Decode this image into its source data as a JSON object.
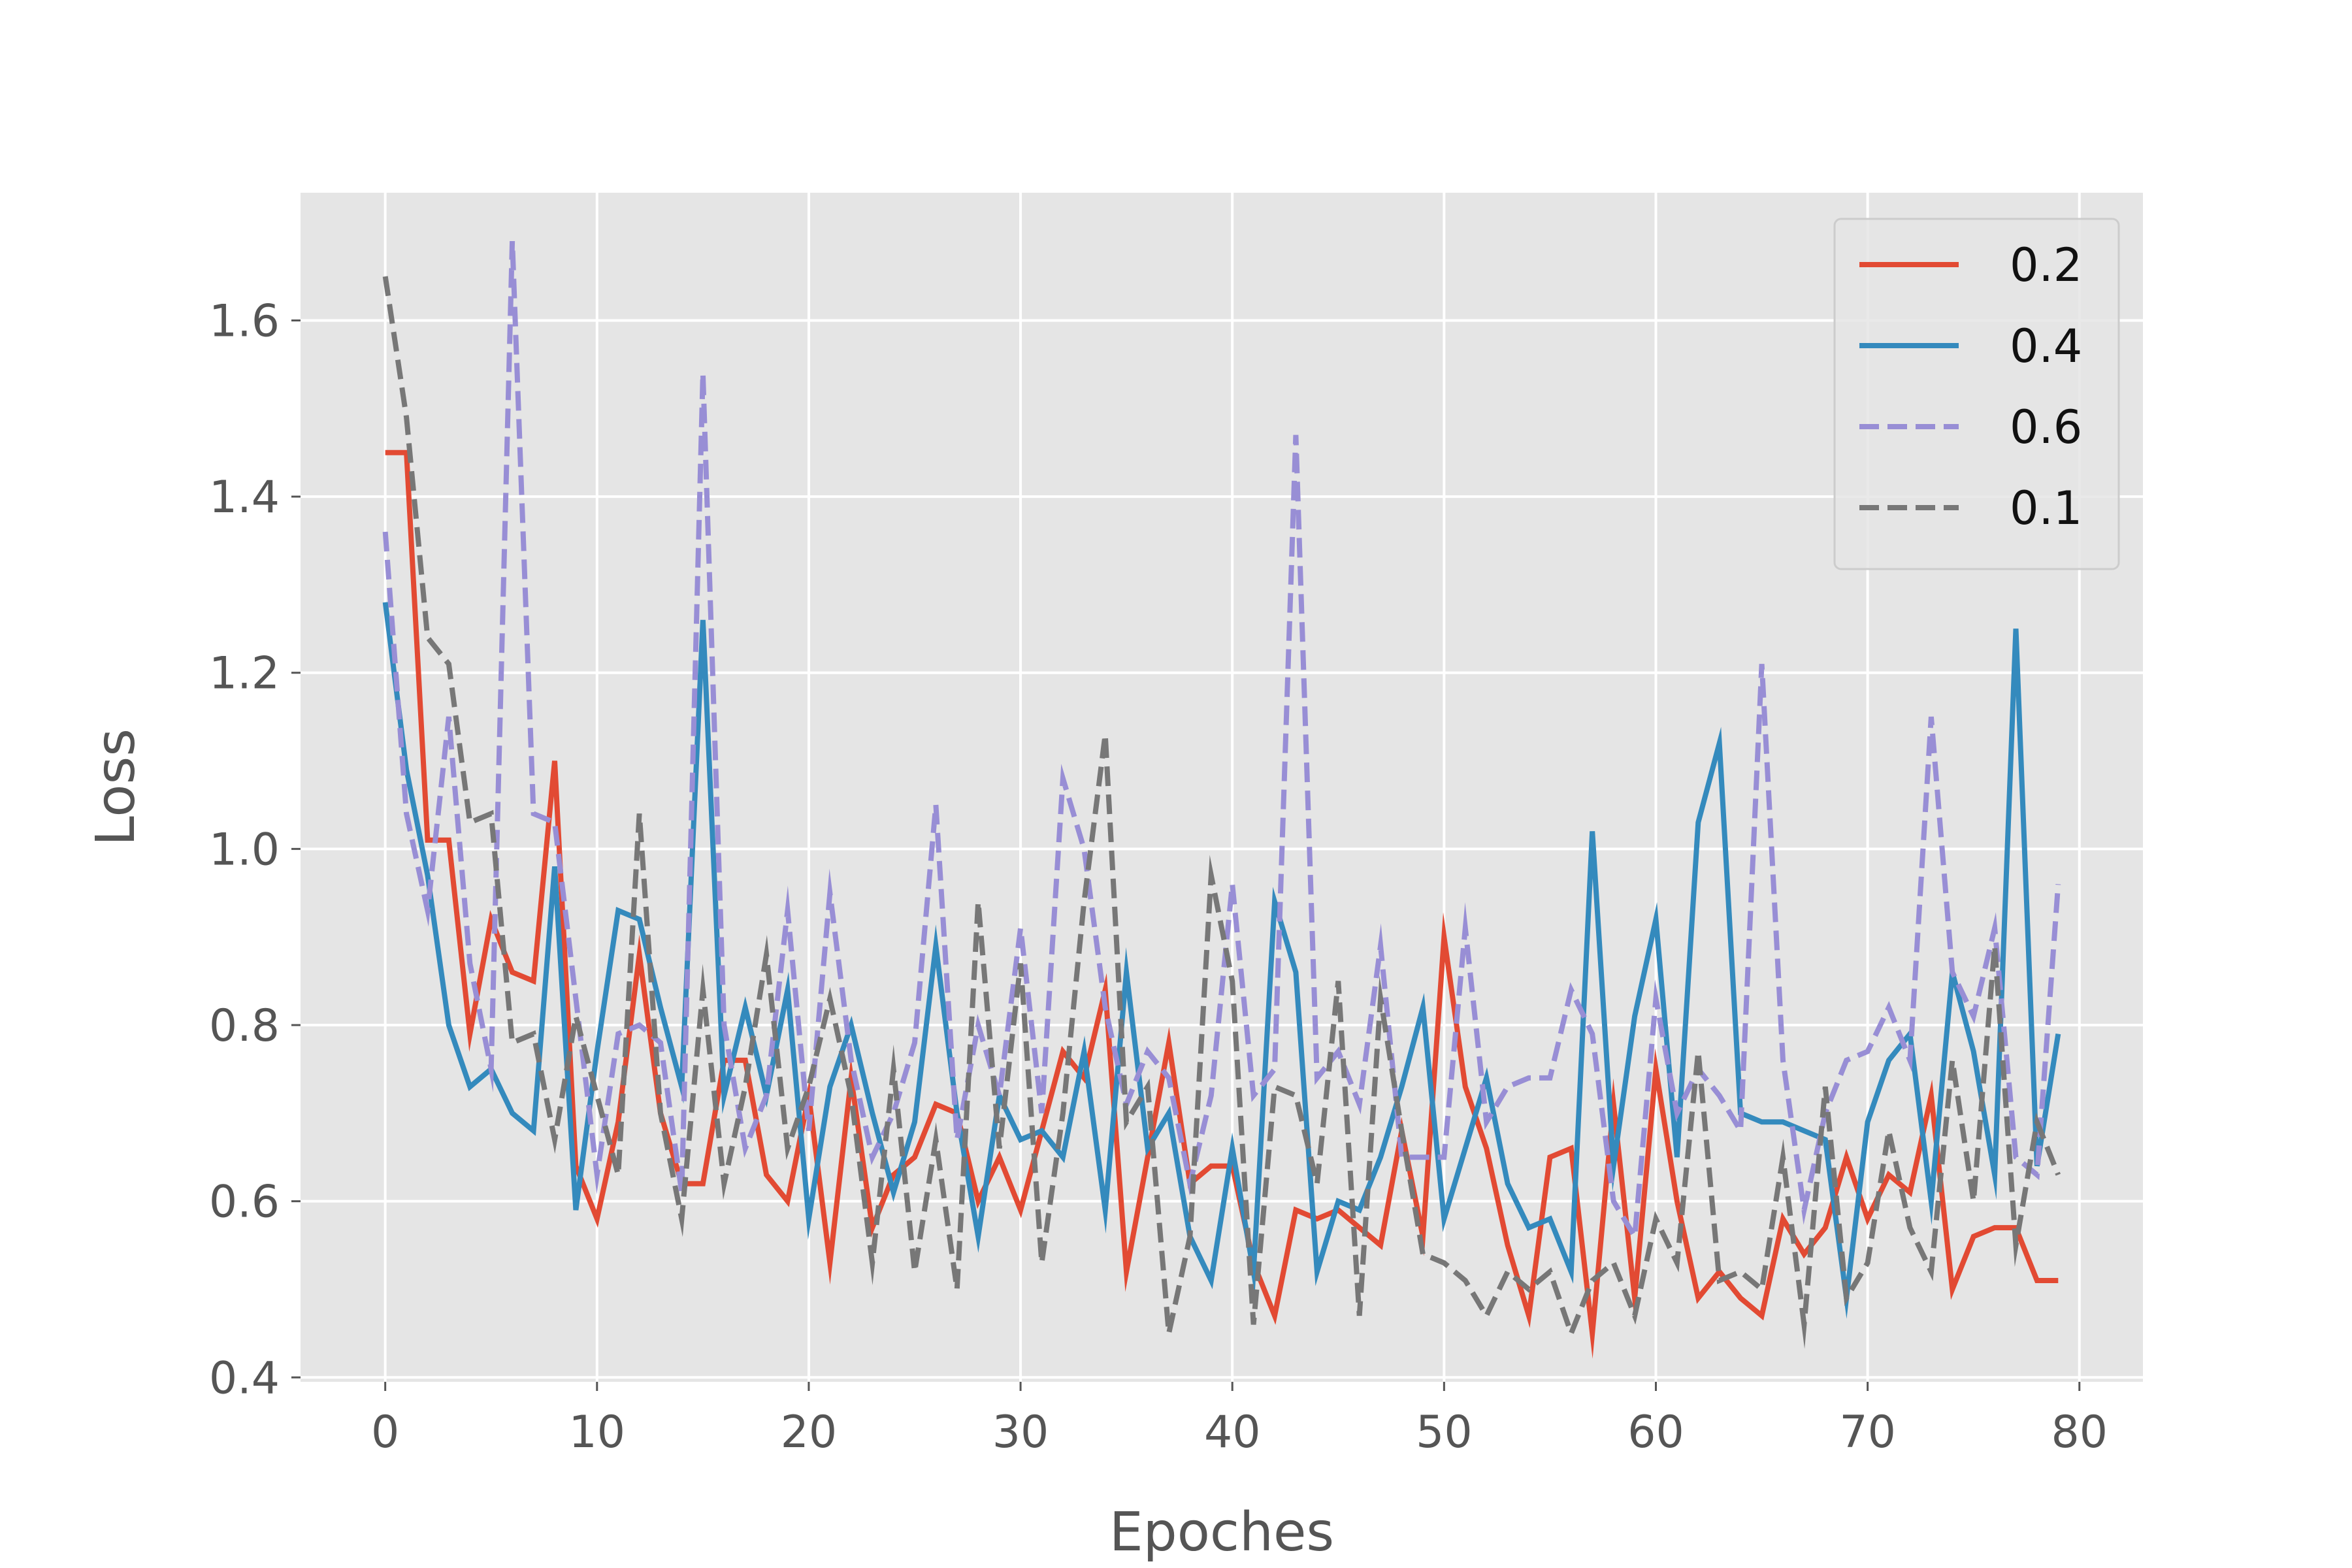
{
  "chart_data": {
    "type": "line",
    "xlabel": "Epoches",
    "ylabel": "Loss",
    "xlim": [
      -4,
      83
    ],
    "ylim": [
      0.395,
      1.745
    ],
    "xticks": [
      0,
      10,
      20,
      30,
      40,
      50,
      60,
      70,
      80
    ],
    "yticks": [
      0.4,
      0.6,
      0.8,
      1.0,
      1.2,
      1.4,
      1.6
    ],
    "grid": true,
    "legend_position": "top-right",
    "series": [
      {
        "name": "0.2",
        "color": "#e24a33",
        "dash": "solid",
        "values": [
          1.45,
          1.45,
          1.01,
          1.01,
          0.79,
          0.92,
          0.86,
          0.85,
          1.1,
          0.64,
          0.58,
          0.69,
          0.88,
          0.7,
          0.62,
          0.62,
          0.76,
          0.76,
          0.63,
          0.6,
          0.72,
          0.53,
          0.74,
          0.57,
          0.63,
          0.65,
          0.71,
          0.7,
          0.6,
          0.65,
          0.59,
          0.68,
          0.77,
          0.74,
          0.84,
          0.52,
          0.65,
          0.78,
          0.62,
          0.64,
          0.64,
          0.53,
          0.47,
          0.59,
          0.58,
          0.59,
          0.57,
          0.55,
          0.68,
          0.56,
          0.9,
          0.73,
          0.66,
          0.55,
          0.47,
          0.65,
          0.66,
          0.45,
          0.71,
          0.49,
          0.75,
          0.6,
          0.49,
          0.52,
          0.49,
          0.47,
          0.58,
          0.54,
          0.57,
          0.65,
          0.58,
          0.63,
          0.61,
          0.72,
          0.5,
          0.56,
          0.57,
          0.57,
          0.51,
          0.51
        ]
      },
      {
        "name": "0.4",
        "color": "#348abd",
        "dash": "solid",
        "values": [
          1.28,
          1.09,
          0.97,
          0.8,
          0.73,
          0.75,
          0.7,
          0.68,
          0.98,
          0.59,
          0.77,
          0.93,
          0.92,
          0.82,
          0.73,
          1.26,
          0.72,
          0.82,
          0.72,
          0.84,
          0.58,
          0.73,
          0.8,
          0.7,
          0.61,
          0.69,
          0.89,
          0.7,
          0.56,
          0.72,
          0.67,
          0.68,
          0.65,
          0.77,
          0.59,
          0.86,
          0.66,
          0.7,
          0.56,
          0.51,
          0.66,
          0.52,
          0.94,
          0.86,
          0.52,
          0.6,
          0.59,
          0.65,
          0.73,
          0.82,
          0.58,
          0.66,
          0.74,
          0.62,
          0.57,
          0.58,
          0.52,
          1.02,
          0.64,
          0.81,
          0.92,
          0.65,
          1.03,
          1.12,
          0.7,
          0.69,
          0.69,
          0.68,
          0.67,
          0.49,
          0.69,
          0.76,
          0.79,
          0.6,
          0.86,
          0.77,
          0.63,
          1.25,
          0.64,
          0.79
        ]
      },
      {
        "name": "0.6",
        "color": "#988ed5",
        "dash": "dashed",
        "values": [
          1.36,
          1.04,
          0.93,
          1.15,
          0.87,
          0.75,
          1.69,
          1.04,
          1.03,
          0.83,
          0.63,
          0.79,
          0.8,
          0.78,
          0.61,
          1.54,
          0.8,
          0.66,
          0.72,
          0.93,
          0.68,
          0.95,
          0.76,
          0.65,
          0.7,
          0.78,
          1.05,
          0.67,
          0.8,
          0.72,
          0.91,
          0.7,
          1.08,
          1.0,
          0.82,
          0.71,
          0.77,
          0.74,
          0.62,
          0.72,
          0.96,
          0.72,
          0.75,
          1.47,
          0.74,
          0.77,
          0.71,
          0.89,
          0.65,
          0.65,
          0.65,
          0.91,
          0.69,
          0.73,
          0.74,
          0.74,
          0.84,
          0.79,
          0.6,
          0.56,
          0.83,
          0.7,
          0.75,
          0.72,
          0.68,
          1.21,
          0.76,
          0.59,
          0.7,
          0.76,
          0.77,
          0.82,
          0.76,
          1.15,
          0.86,
          0.81,
          0.91,
          0.65,
          0.63,
          0.96
        ]
      },
      {
        "name": "0.1",
        "color": "#777777",
        "dash": "dashed",
        "values": [
          1.65,
          1.49,
          1.24,
          1.21,
          1.03,
          1.04,
          0.78,
          0.79,
          0.67,
          0.81,
          0.72,
          0.63,
          1.04,
          0.7,
          0.58,
          0.84,
          0.62,
          0.73,
          0.88,
          0.66,
          0.73,
          0.83,
          0.72,
          0.53,
          0.75,
          0.52,
          0.67,
          0.5,
          0.94,
          0.66,
          0.87,
          0.53,
          0.7,
          0.94,
          1.13,
          0.69,
          0.73,
          0.45,
          0.56,
          0.97,
          0.85,
          0.46,
          0.73,
          0.72,
          0.62,
          0.85,
          0.47,
          0.83,
          0.68,
          0.54,
          0.53,
          0.51,
          0.47,
          0.52,
          0.5,
          0.52,
          0.45,
          0.51,
          0.53,
          0.47,
          0.58,
          0.53,
          0.77,
          0.51,
          0.52,
          0.5,
          0.65,
          0.46,
          0.73,
          0.49,
          0.53,
          0.68,
          0.57,
          0.52,
          0.76,
          0.6,
          0.89,
          0.55,
          0.69,
          0.63
        ]
      }
    ]
  }
}
